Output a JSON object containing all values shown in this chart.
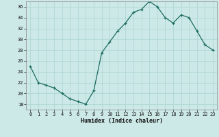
{
  "x": [
    0,
    1,
    2,
    3,
    4,
    5,
    6,
    7,
    8,
    9,
    10,
    11,
    12,
    13,
    14,
    15,
    16,
    17,
    18,
    19,
    20,
    21,
    22,
    23
  ],
  "y": [
    25,
    22,
    21.5,
    21,
    20,
    19,
    18.5,
    18,
    20.5,
    27.5,
    29.5,
    31.5,
    33,
    35,
    35.5,
    37,
    36,
    34,
    33,
    34.5,
    34,
    31.5,
    29,
    28
  ],
  "line_color": "#1a6b5e",
  "marker": "+",
  "bg_color": "#cce9e7",
  "grid_color": "#aad4d1",
  "xlabel": "Humidex (Indice chaleur)",
  "ylabel": "",
  "title": "",
  "xlim": [
    -0.5,
    23.5
  ],
  "ylim": [
    17,
    37
  ],
  "yticks": [
    18,
    20,
    22,
    24,
    26,
    28,
    30,
    32,
    34,
    36
  ],
  "xticks": [
    0,
    1,
    2,
    3,
    4,
    5,
    6,
    7,
    8,
    9,
    10,
    11,
    12,
    13,
    14,
    15,
    16,
    17,
    18,
    19,
    20,
    21,
    22,
    23
  ]
}
